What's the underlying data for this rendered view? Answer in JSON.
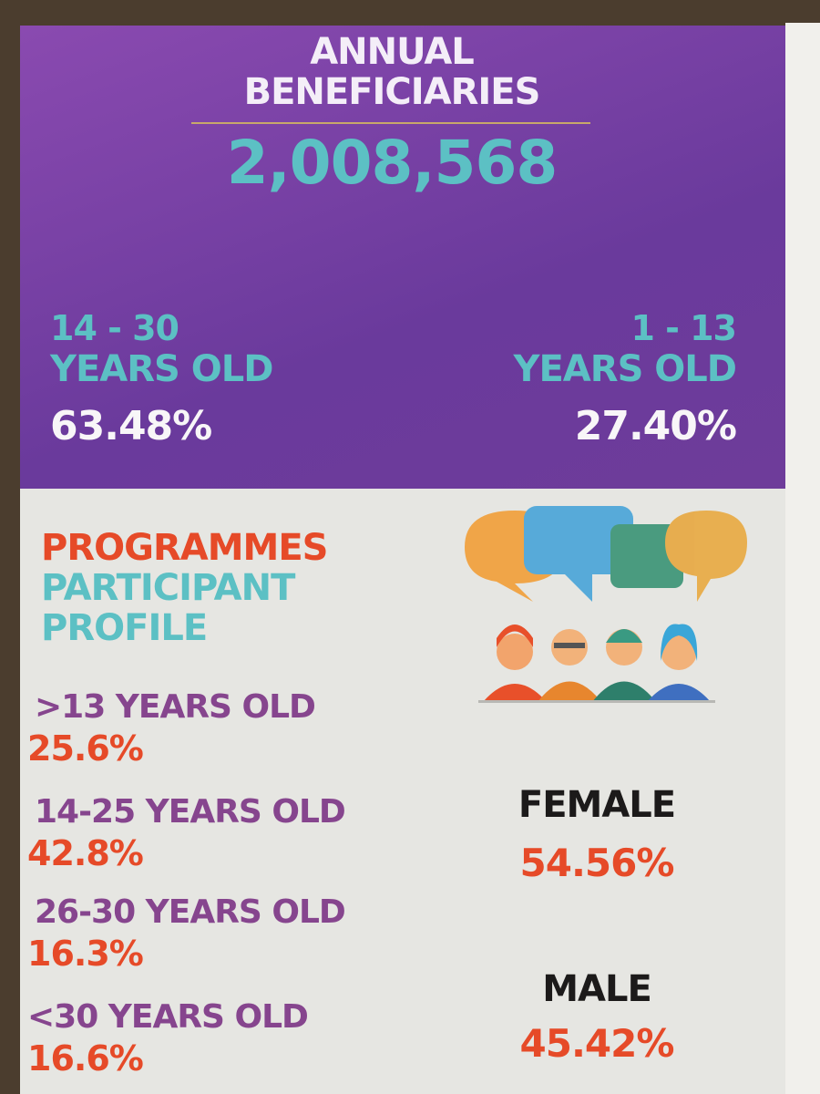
{
  "header": {
    "title_lines": [
      "ANNUAL",
      "BENEFICIARIES"
    ],
    "total": "2,008,568"
  },
  "age_groups": [
    {
      "range": "14 - 30",
      "unit": "YEARS OLD",
      "share": "63.48%"
    },
    {
      "range": "1 - 13",
      "unit": "YEARS OLD",
      "share": "27.40%"
    }
  ],
  "profile": {
    "title_lines": [
      "PROGRAMMES",
      "PARTICIPANT",
      "PROFILE"
    ],
    "ages": [
      {
        "label": ">13 YEARS OLD",
        "share": "25.6%"
      },
      {
        "label": "14-25 YEARS OLD",
        "share": "42.8%"
      },
      {
        "label": "26-30 YEARS OLD",
        "share": "16.3%"
      },
      {
        "label": "<30 YEARS OLD",
        "share": "16.6%"
      }
    ],
    "gender": [
      {
        "label": "FEMALE",
        "share": "54.56%"
      },
      {
        "label": "MALE",
        "share": "45.42%"
      }
    ]
  }
}
